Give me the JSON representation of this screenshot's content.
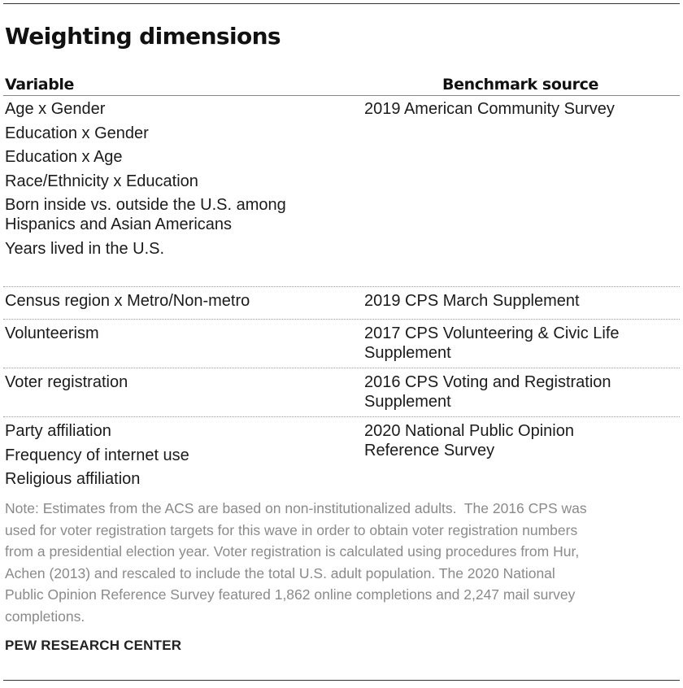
{
  "title": "Weighting dimensions",
  "columns": {
    "variable": "Variable",
    "benchmark": "Benchmark source"
  },
  "groups": [
    {
      "variables": [
        [
          "Age x Gender"
        ],
        [
          "Education x Gender"
        ],
        [
          "Education x Age"
        ],
        [
          "Race/Ethnicity x Education"
        ],
        [
          "Born inside vs. outside the U.S. among",
          "Hispanics and Asian Americans"
        ],
        [
          "Years lived in the U.S."
        ]
      ],
      "benchmark": [
        "2019 American Community Survey"
      ]
    },
    {
      "variables": [
        [
          "Census region x Metro/Non-metro"
        ]
      ],
      "benchmark": [
        "2019 CPS March Supplement"
      ]
    },
    {
      "variables": [
        [
          "Volunteerism"
        ]
      ],
      "benchmark": [
        "2017 CPS Volunteering & Civic Life",
        "Supplement"
      ]
    },
    {
      "variables": [
        [
          "Voter registration"
        ]
      ],
      "benchmark": [
        "2016 CPS Voting and Registration",
        "Supplement"
      ]
    },
    {
      "variables": [
        [
          "Party affiliation"
        ],
        [
          "Frequency of internet use"
        ],
        [
          "Religious affiliation"
        ]
      ],
      "benchmark": [
        "2020 National Public Opinion",
        "Reference Survey"
      ]
    }
  ],
  "note_lines": [
    "Note: Estimates from the ACS are based on non-institutionalized adults.  The 2016 CPS was",
    "used for voter registration targets for this wave in order to obtain voter registration numbers",
    "from a presidential election year. Voter registration is calculated using procedures from Hur,",
    "Achen (2013) and rescaled to include the total U.S. adult population. The 2020 National",
    "Public Opinion Reference Survey featured 1,862 online completions and 2,247 mail survey",
    "completions."
  ],
  "source": "PEW RESEARCH CENTER"
}
